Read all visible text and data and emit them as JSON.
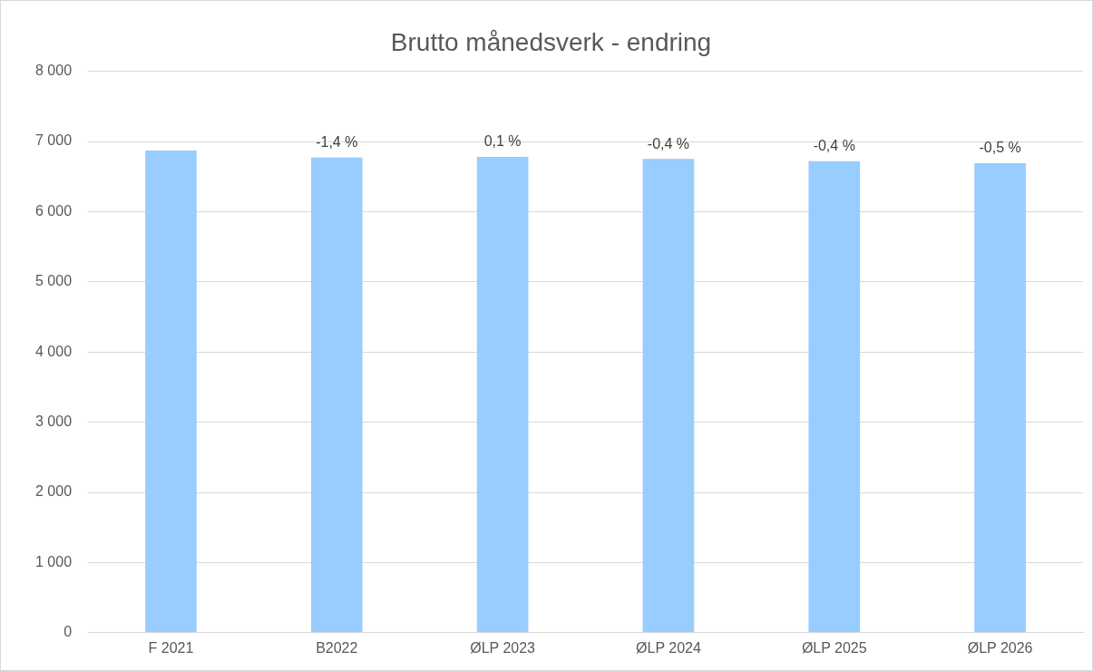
{
  "chart_data": {
    "type": "bar",
    "title": "Brutto månedsverk - endring",
    "categories": [
      "F 2021",
      "B2022",
      "ØLP 2023",
      "ØLP 2024",
      "ØLP 2025",
      "ØLP 2026"
    ],
    "values": [
      6870,
      6770,
      6780,
      6750,
      6720,
      6690
    ],
    "annotations": [
      {
        "text": "-1,4 %",
        "x": "B2022",
        "y": 6770
      },
      {
        "text": "0,1 %",
        "x": "ØLP 2023",
        "y": 6780
      },
      {
        "text": "-0,4 %",
        "x": "ØLP 2024",
        "y": 6750
      },
      {
        "text": "-0,4 %",
        "x": "ØLP 2025",
        "y": 6720
      },
      {
        "text": "-0,5 %",
        "x": "ØLP 2026",
        "y": 6690
      }
    ],
    "color": "#99ccff",
    "ylim": [
      0,
      8000
    ],
    "yticks": [
      {
        "value": 0,
        "label": "0"
      },
      {
        "value": 1000,
        "label": "1 000"
      },
      {
        "value": 2000,
        "label": "2 000"
      },
      {
        "value": 3000,
        "label": "3 000"
      },
      {
        "value": 4000,
        "label": "4 000"
      },
      {
        "value": 5000,
        "label": "5 000"
      },
      {
        "value": 6000,
        "label": "6 000"
      },
      {
        "value": 7000,
        "label": "7 000"
      },
      {
        "value": 8000,
        "label": "8 000"
      }
    ],
    "grid": "y",
    "legend": false
  }
}
